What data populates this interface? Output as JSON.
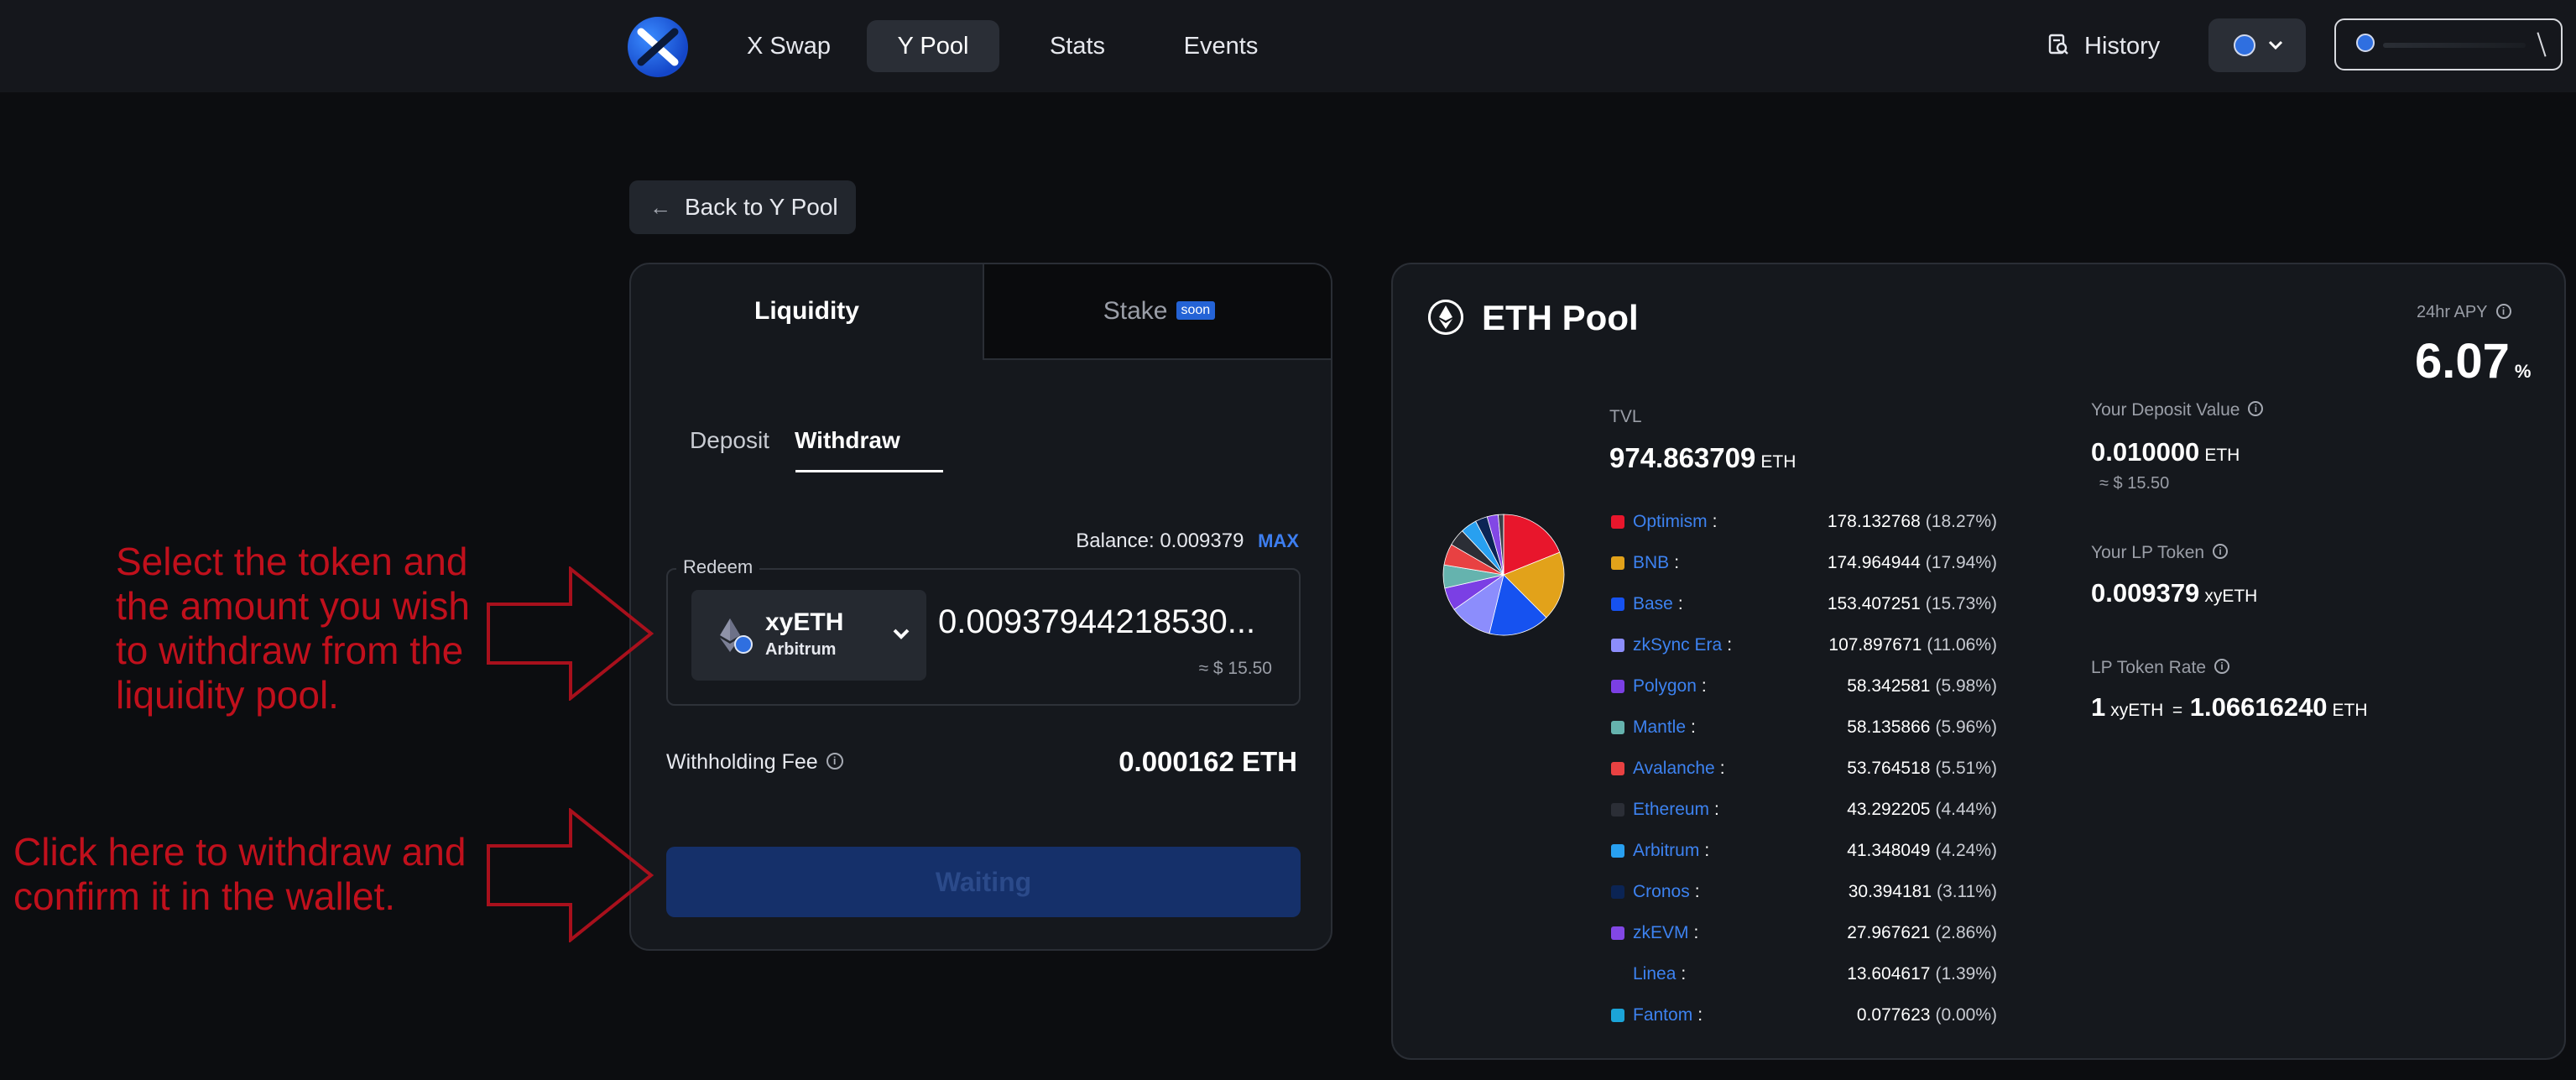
{
  "nav": {
    "items": [
      {
        "label": "X Swap",
        "active": false
      },
      {
        "label": "Y Pool",
        "active": true
      },
      {
        "label": "Stats",
        "active": false
      },
      {
        "label": "Events",
        "active": false
      }
    ],
    "history_label": "History"
  },
  "back_label": "Back to Y Pool",
  "left_card": {
    "tabs": {
      "liquidity": "Liquidity",
      "stake": "Stake",
      "stake_badge": "soon"
    },
    "subtabs": {
      "deposit": "Deposit",
      "withdraw": "Withdraw"
    },
    "balance_label": "Balance:",
    "balance_value": "0.009379",
    "max_label": "MAX",
    "redeem_label": "Redeem",
    "token": {
      "symbol": "xyETH",
      "chain": "Arbitrum"
    },
    "amount": "0.00937944218530...",
    "amount_usd": "≈ $ 15.50",
    "fee_label": "Withholding Fee",
    "fee_value": "0.000162 ETH",
    "action_button": "Waiting"
  },
  "right_card": {
    "title": "ETH Pool",
    "apy_label": "24hr APY",
    "apy_value": "6.07",
    "apy_unit": "%",
    "tvl_label": "TVL",
    "tvl_value": "974.863709",
    "tvl_unit": "ETH",
    "chains": [
      {
        "name": "Optimism",
        "value": "178.132768",
        "pct": "(18.27%)",
        "color": "#e8162c"
      },
      {
        "name": "BNB",
        "value": "174.964944",
        "pct": "(17.94%)",
        "color": "#e2a21a"
      },
      {
        "name": "Base",
        "value": "153.407251",
        "pct": "(15.73%)",
        "color": "#1652f0"
      },
      {
        "name": "zkSync Era",
        "value": "107.897671",
        "pct": "(11.06%)",
        "color": "#8c8dfc"
      },
      {
        "name": "Polygon",
        "value": "58.342581",
        "pct": "(5.98%)",
        "color": "#7b3fe4"
      },
      {
        "name": "Mantle",
        "value": "58.135866",
        "pct": "(5.96%)",
        "color": "#65b3ae"
      },
      {
        "name": "Avalanche",
        "value": "53.764518",
        "pct": "(5.51%)",
        "color": "#e84142"
      },
      {
        "name": "Ethereum",
        "value": "43.292205",
        "pct": "(4.44%)",
        "color": "#2b2e36"
      },
      {
        "name": "Arbitrum",
        "value": "41.348049",
        "pct": "(4.24%)",
        "color": "#28a0f0"
      },
      {
        "name": "Cronos",
        "value": "30.394181",
        "pct": "(3.11%)",
        "color": "#0b2454"
      },
      {
        "name": "zkEVM",
        "value": "27.967621",
        "pct": "(2.86%)",
        "color": "#8247e5"
      },
      {
        "name": "Linea",
        "value": "13.604617",
        "pct": "(1.39%)",
        "color": "#15181d"
      },
      {
        "name": "Fantom",
        "value": "0.077623",
        "pct": "(0.00%)",
        "color": "#1ba4d8"
      }
    ],
    "deposit_label": "Your Deposit Value",
    "deposit_value": "0.010000",
    "deposit_unit": "ETH",
    "deposit_usd": "≈ $ 15.50",
    "lp_label": "Your LP Token",
    "lp_value": "0.009379",
    "lp_unit": "xyETH",
    "rate_label": "LP Token Rate",
    "rate_left_num": "1",
    "rate_left_unit": "xyETH",
    "rate_eq": "=",
    "rate_right_num": "1.06616240",
    "rate_right_unit": "ETH"
  },
  "annotations": {
    "select_token": [
      "Select the token and",
      "the amount you wish",
      "to withdraw from the",
      "liquidity pool."
    ],
    "click_withdraw": [
      "Click here to withdraw and",
      "confirm it in the wallet."
    ]
  },
  "colors": {
    "annotation": "#c0101c",
    "accent": "#3d82f0",
    "button_waiting": "#15306a"
  }
}
